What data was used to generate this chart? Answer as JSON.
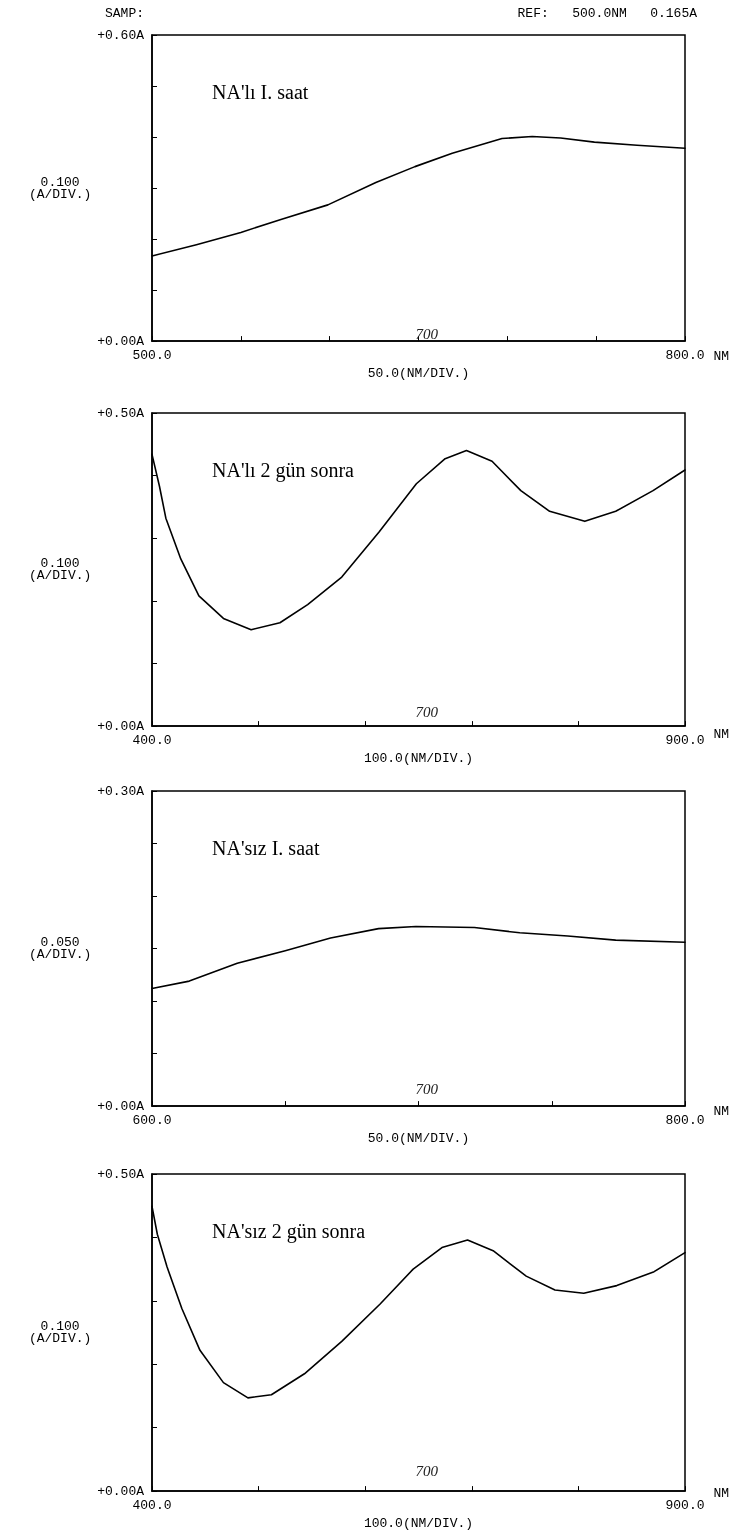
{
  "chart_data": [
    {
      "type": "line",
      "title": "NA'lı I. saat",
      "subtitle": "SAMP:",
      "xlabel": "50.0(NM/DIV.)",
      "ylabel": "0.100\n(A/DIV.)",
      "marker": "none",
      "grid": false,
      "annotations": [
        "REF:   500.0NM   0.165A",
        "700",
        "NM"
      ],
      "xlim": [
        500,
        800
      ],
      "xticks": [
        {
          "value": 500,
          "label": "500.0"
        },
        {
          "value": 550,
          "label": null
        },
        {
          "value": 600,
          "label": null
        },
        {
          "value": 650,
          "label": null
        },
        {
          "value": 700,
          "label": null
        },
        {
          "value": 750,
          "label": null
        },
        {
          "value": 800,
          "label": "800.0"
        }
      ],
      "ylim": [
        0,
        0.6
      ],
      "yticks": [
        {
          "value": 0,
          "label": "+0.00A"
        },
        {
          "value": 0.1,
          "label": null
        },
        {
          "value": 0.2,
          "label": null
        },
        {
          "value": 0.3,
          "label": null
        },
        {
          "value": 0.4,
          "label": null
        },
        {
          "value": 0.5,
          "label": null
        },
        {
          "value": 0.6,
          "label": "+0.60A"
        }
      ],
      "series": [
        {
          "color": "#000000",
          "x": [
            500,
            525,
            550,
            573,
            599,
            626,
            648,
            669,
            688,
            697,
            714,
            730,
            749,
            773,
            800
          ],
          "values": [
            0.167,
            0.189,
            0.213,
            0.239,
            0.267,
            0.311,
            0.342,
            0.368,
            0.388,
            0.397,
            0.401,
            0.398,
            0.39,
            0.384,
            0.378
          ]
        }
      ]
    },
    {
      "type": "line",
      "title": "NA'lı 2 gün sonra",
      "xlabel": "100.0(NM/DIV.)",
      "ylabel": "0.100\n(A/DIV.)",
      "marker": "none",
      "grid": false,
      "annotations": [
        "700",
        "NM"
      ],
      "xlim": [
        400,
        900
      ],
      "xticks": [
        {
          "value": 400,
          "label": "400.0"
        },
        {
          "value": 500,
          "label": null
        },
        {
          "value": 600,
          "label": null
        },
        {
          "value": 700,
          "label": null
        },
        {
          "value": 800,
          "label": null
        },
        {
          "value": 900,
          "label": "900.0"
        }
      ],
      "ylim": [
        0,
        0.5
      ],
      "yticks": [
        {
          "value": 0,
          "label": "+0.00A"
        },
        {
          "value": 0.1,
          "label": null
        },
        {
          "value": 0.2,
          "label": null
        },
        {
          "value": 0.3,
          "label": null
        },
        {
          "value": 0.4,
          "label": null
        },
        {
          "value": 0.5,
          "label": "+0.50A"
        }
      ],
      "series": [
        {
          "color": "#000000",
          "x": [
            400,
            407,
            413,
            427,
            444,
            467,
            493,
            520,
            546,
            578,
            613,
            648,
            675,
            695,
            719,
            746,
            773,
            806,
            835,
            870,
            900
          ],
          "values": [
            0.434,
            0.383,
            0.332,
            0.267,
            0.208,
            0.172,
            0.154,
            0.165,
            0.194,
            0.238,
            0.31,
            0.387,
            0.427,
            0.44,
            0.423,
            0.376,
            0.343,
            0.327,
            0.343,
            0.376,
            0.409
          ]
        }
      ]
    },
    {
      "type": "line",
      "title": "NA'sız I. saat",
      "xlabel": "50.0(NM/DIV.)",
      "ylabel": "0.050\n(A/DIV.)",
      "marker": "none",
      "grid": false,
      "annotations": [
        "700",
        "NM"
      ],
      "xlim": [
        600,
        800
      ],
      "xticks": [
        {
          "value": 600,
          "label": "600.0"
        },
        {
          "value": 650,
          "label": null
        },
        {
          "value": 700,
          "label": null
        },
        {
          "value": 750,
          "label": null
        },
        {
          "value": 800,
          "label": "800.0"
        }
      ],
      "ylim": [
        0,
        0.3
      ],
      "yticks": [
        {
          "value": 0,
          "label": "+0.00A"
        },
        {
          "value": 0.05,
          "label": null
        },
        {
          "value": 0.1,
          "label": null
        },
        {
          "value": 0.15,
          "label": null
        },
        {
          "value": 0.2,
          "label": null
        },
        {
          "value": 0.25,
          "label": null
        },
        {
          "value": 0.3,
          "label": "+0.30A"
        }
      ],
      "series": [
        {
          "color": "#000000",
          "x": [
            600,
            614,
            632,
            650,
            667,
            685,
            699,
            721,
            738,
            756,
            774,
            800
          ],
          "values": [
            0.112,
            0.119,
            0.136,
            0.148,
            0.16,
            0.169,
            0.171,
            0.17,
            0.165,
            0.162,
            0.158,
            0.156
          ]
        }
      ]
    },
    {
      "type": "line",
      "title": "NA'sız 2 gün sonra",
      "xlabel": "100.0(NM/DIV.)",
      "ylabel": "0.100\n(A/DIV.)",
      "marker": "none",
      "grid": false,
      "annotations": [
        "700",
        "NM"
      ],
      "xlim": [
        400,
        900
      ],
      "xticks": [
        {
          "value": 400,
          "label": "400.0"
        },
        {
          "value": 500,
          "label": null
        },
        {
          "value": 600,
          "label": null
        },
        {
          "value": 700,
          "label": null
        },
        {
          "value": 800,
          "label": null
        },
        {
          "value": 900,
          "label": "900.0"
        }
      ],
      "ylim": [
        0,
        0.5
      ],
      "yticks": [
        {
          "value": 0,
          "label": "+0.00A"
        },
        {
          "value": 0.1,
          "label": null
        },
        {
          "value": 0.2,
          "label": null
        },
        {
          "value": 0.3,
          "label": null
        },
        {
          "value": 0.4,
          "label": null
        },
        {
          "value": 0.5,
          "label": "+0.50A"
        }
      ],
      "series": [
        {
          "color": "#000000",
          "x": [
            400,
            405,
            414,
            428,
            445,
            467,
            490,
            512,
            543,
            578,
            614,
            645,
            672,
            696,
            720,
            751,
            778,
            805,
            836,
            871,
            900
          ],
          "values": [
            0.449,
            0.405,
            0.354,
            0.288,
            0.222,
            0.171,
            0.147,
            0.152,
            0.185,
            0.236,
            0.295,
            0.35,
            0.384,
            0.396,
            0.379,
            0.339,
            0.317,
            0.312,
            0.324,
            0.346,
            0.376
          ]
        }
      ]
    }
  ]
}
